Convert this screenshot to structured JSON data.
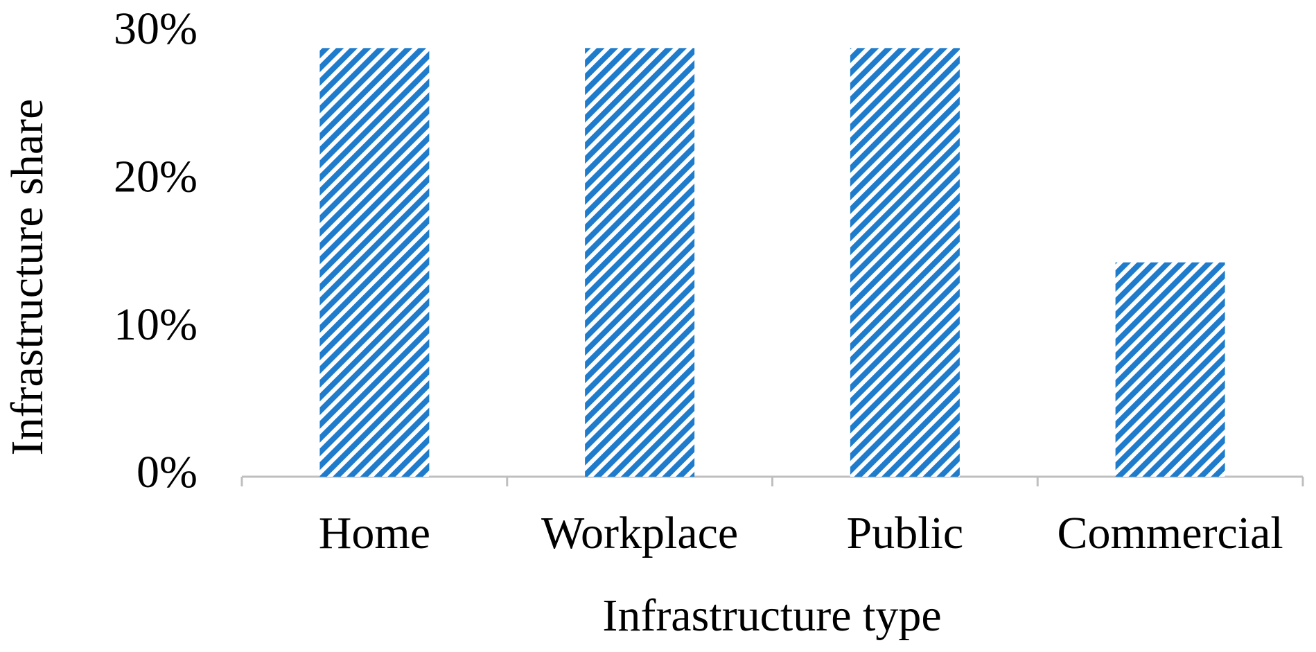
{
  "chart_data": {
    "type": "bar",
    "x_label": "Infrastructure type",
    "y_label": "Infrastructure share",
    "categories": [
      "Home",
      "Workplace",
      "Public",
      "Commercial"
    ],
    "values": [
      29,
      29,
      29,
      14.5
    ],
    "color": "#1f7ccc",
    "ylim": [
      0,
      30
    ],
    "yticks": [
      {
        "value": 0,
        "label": "0%"
      },
      {
        "value": 10,
        "label": "10%"
      },
      {
        "value": 20,
        "label": "20%"
      },
      {
        "value": 30,
        "label": "30%"
      }
    ],
    "grid": false
  }
}
